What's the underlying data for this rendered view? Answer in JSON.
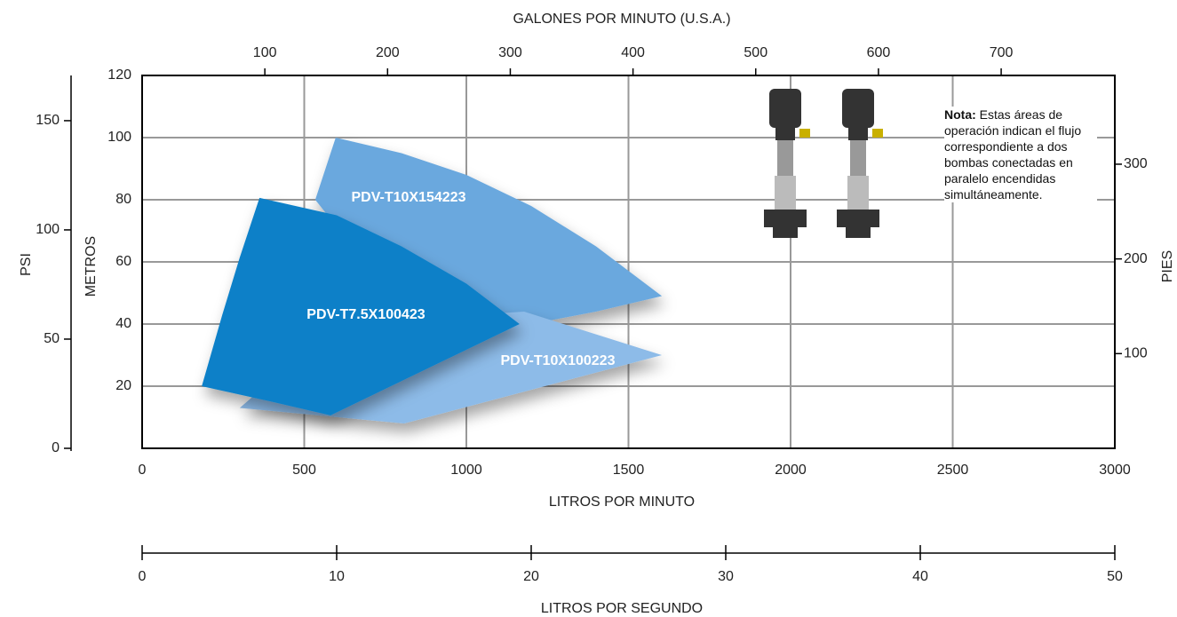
{
  "chart_data": {
    "type": "area",
    "xlabel": "LITROS POR MINUTO",
    "xlim": [
      0,
      3000
    ],
    "xticks": [
      0,
      500,
      1000,
      1500,
      2000,
      2500,
      3000
    ],
    "ylabel": "METROS",
    "ylim": [
      0,
      120
    ],
    "yticks": [
      20,
      40,
      60,
      80,
      100,
      120
    ],
    "grid": true,
    "psi_axis": {
      "label": "PSI",
      "lim": [
        0,
        170.7
      ],
      "ticks": [
        0,
        50,
        100,
        150
      ]
    },
    "feet_axis": {
      "label": "PIES",
      "lim": [
        0,
        393.7
      ],
      "ticks": [
        100,
        200,
        300
      ]
    },
    "gpm_axis": {
      "label": "GALONES POR MINUTO (U.S.A.)",
      "lim": [
        0,
        792.6
      ],
      "ticks": [
        100,
        200,
        300,
        400,
        500,
        600,
        700
      ]
    },
    "lps_axis": {
      "label": "LITROS POR SEGUNDO",
      "lim": [
        0,
        50
      ],
      "ticks": [
        0,
        10,
        20,
        30,
        40,
        50
      ]
    },
    "series": [
      {
        "name": "PDV-T10X154223",
        "color": "#6aa8de",
        "x": [
          597,
          800,
          1000,
          1200,
          1400,
          1603,
          1400,
          1200,
          1000,
          800,
          534
        ],
        "y": [
          100,
          95,
          88,
          78,
          65,
          49,
          44,
          40,
          40,
          45,
          80
        ]
      },
      {
        "name": "PDV-T10X100223",
        "color": "#8dbbe8",
        "x": [
          301,
          808,
          1603,
          1178,
          600
        ],
        "y": [
          13,
          8,
          30,
          44,
          40
        ]
      },
      {
        "name": "PDV-T7.5X100423",
        "color": "#0a80c8",
        "x": [
          362,
          600,
          800,
          1000,
          1164,
          581,
          400,
          184,
          247,
          301
        ],
        "y": [
          80.6,
          75,
          65,
          53,
          40,
          10.6,
          15,
          20,
          42.9,
          61.4
        ]
      }
    ],
    "note": {
      "label": "Nota:",
      "text": "Estas áreas de operación indican el flujo correspondiente a dos bombas conectadas en paralelo encendidas simultáneamente."
    }
  }
}
